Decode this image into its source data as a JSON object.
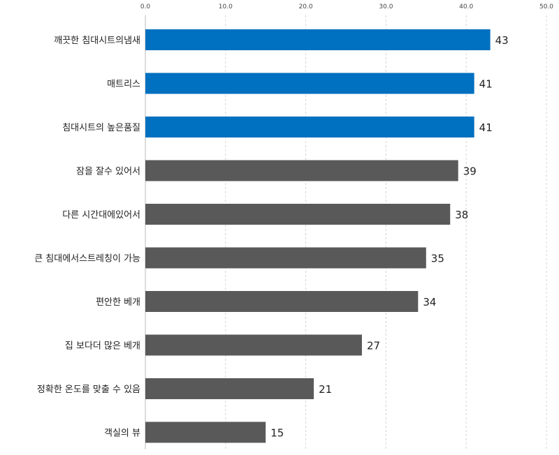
{
  "chart_data": {
    "type": "bar",
    "orientation": "horizontal",
    "categories": [
      "깨끗한 침대시트의냄새",
      "매트리스",
      "침대시트의 높은품질",
      "잠을 잘수 있어서",
      "다른 시간대에있어서",
      "큰 침대에서스트레칭이 가능",
      "편안한 베개",
      "집 보다더 많은 베개",
      "정확한 온도를 맞출 수 있음",
      "객실의 뷰"
    ],
    "values": [
      43,
      41,
      41,
      39,
      38,
      35,
      34,
      27,
      21,
      15
    ],
    "value_labels": [
      "43",
      "41",
      "41",
      "39",
      "38",
      "35",
      "34",
      "27",
      "21",
      "15"
    ],
    "xlim": [
      0,
      50
    ],
    "x_ticks": [
      0,
      10,
      20,
      30,
      40,
      50
    ],
    "x_tick_labels": [
      "0.0",
      "10.0",
      "20.0",
      "30.0",
      "40.0",
      "50.0"
    ],
    "x_axis_position": "top",
    "grid": true,
    "bar_colors": [
      "#0070C0",
      "#0070C0",
      "#0070C0",
      "#595959",
      "#595959",
      "#595959",
      "#595959",
      "#595959",
      "#595959",
      "#595959"
    ],
    "highlight_color": "#0070C0",
    "default_color": "#595959"
  }
}
